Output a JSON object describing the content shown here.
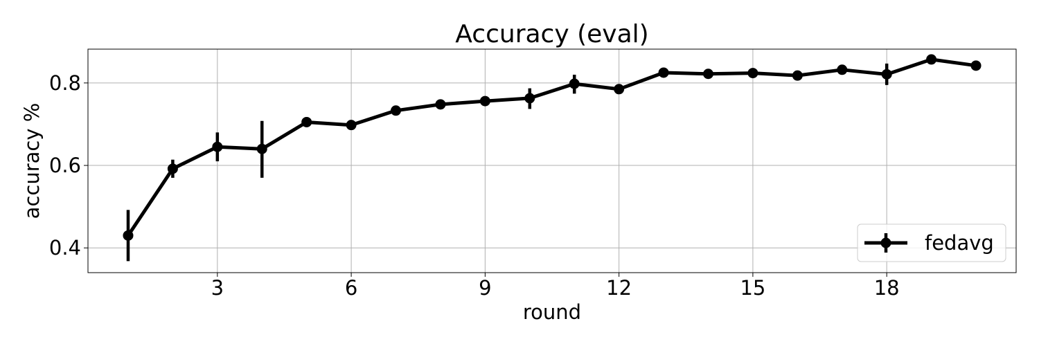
{
  "chart_data": {
    "type": "line",
    "title": "Accuracy (eval)",
    "xlabel": "round",
    "ylabel": "accuracy %",
    "xlim": [
      0.1,
      20.9
    ],
    "ylim": [
      0.34,
      0.882
    ],
    "xticks": [
      3,
      6,
      9,
      12,
      15,
      18
    ],
    "yticks": [
      0.4,
      0.6,
      0.8
    ],
    "xtick_labels": [
      "3",
      "6",
      "9",
      "12",
      "15",
      "18"
    ],
    "ytick_labels": [
      "0.4",
      "0.6",
      "0.8"
    ],
    "grid": true,
    "legend_position": "lower right",
    "series": [
      {
        "name": "fedavg",
        "color": "#000000",
        "marker": "circle",
        "x": [
          1,
          2,
          3,
          4,
          5,
          6,
          7,
          8,
          9,
          10,
          11,
          12,
          13,
          14,
          15,
          16,
          17,
          18,
          19,
          20
        ],
        "y": [
          0.43,
          0.592,
          0.645,
          0.64,
          0.705,
          0.698,
          0.733,
          0.748,
          0.756,
          0.763,
          0.798,
          0.785,
          0.825,
          0.822,
          0.824,
          0.818,
          0.832,
          0.821,
          0.857,
          0.842
        ],
        "yerr_low": [
          0.368,
          0.57,
          0.61,
          0.57,
          0.693,
          0.698,
          0.733,
          0.748,
          0.756,
          0.737,
          0.774,
          0.785,
          0.825,
          0.822,
          0.824,
          0.818,
          0.832,
          0.795,
          0.857,
          0.842
        ],
        "yerr_high": [
          0.492,
          0.614,
          0.68,
          0.708,
          0.717,
          0.698,
          0.733,
          0.748,
          0.756,
          0.787,
          0.82,
          0.785,
          0.825,
          0.822,
          0.824,
          0.818,
          0.832,
          0.847,
          0.857,
          0.842
        ]
      }
    ]
  }
}
